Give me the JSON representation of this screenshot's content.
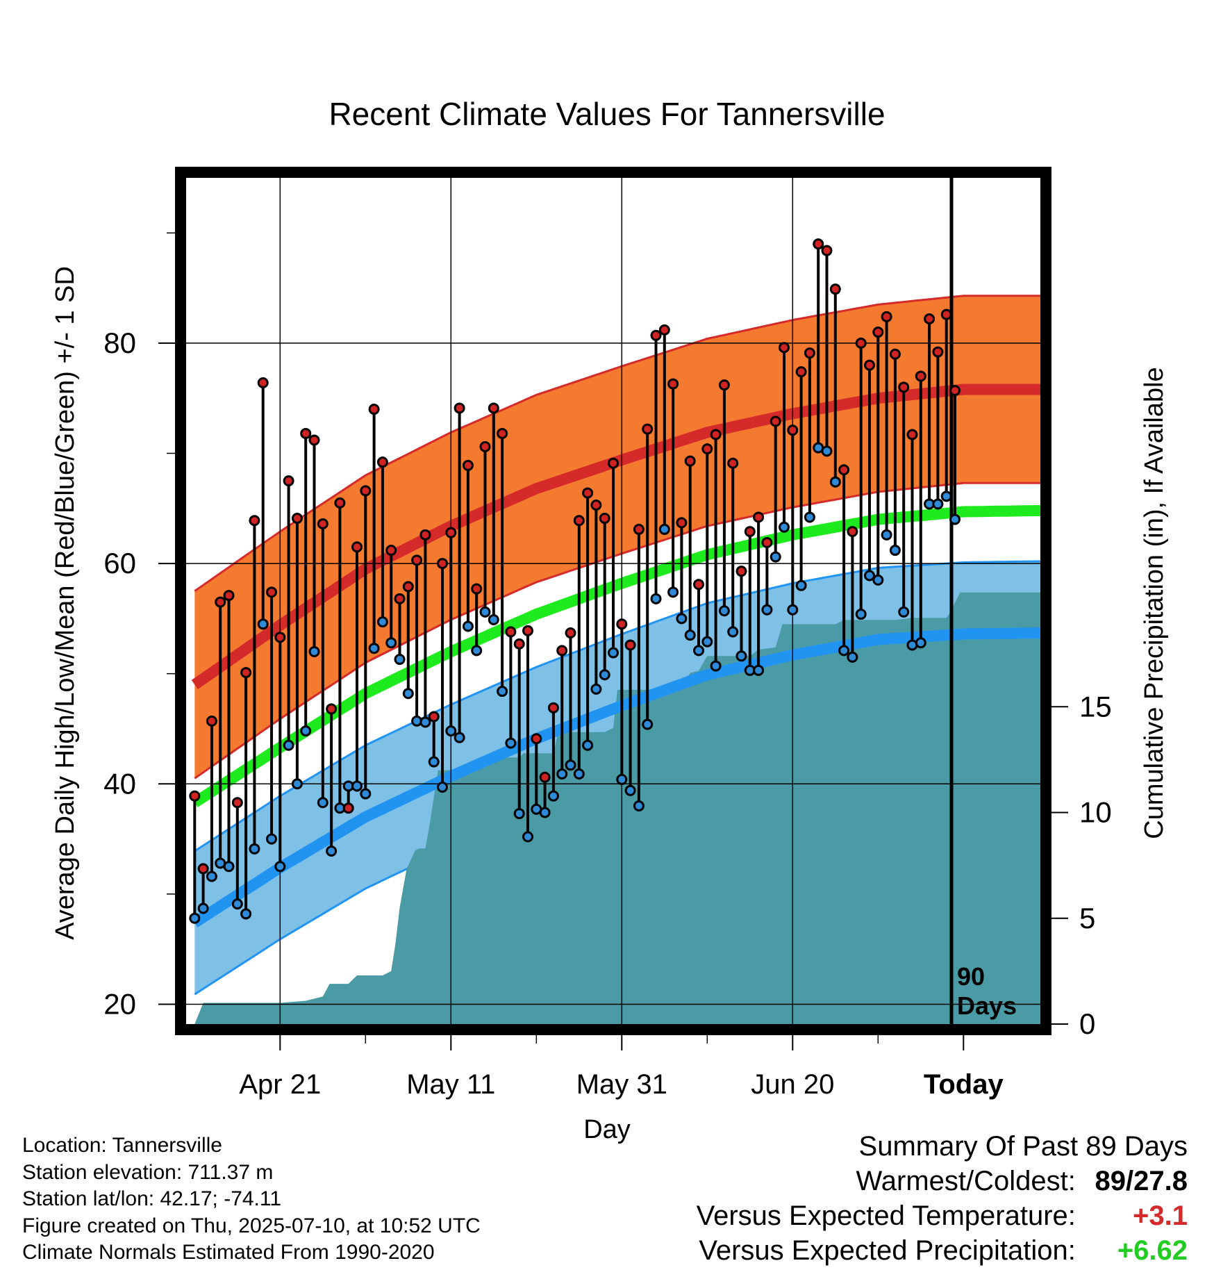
{
  "chart_data": {
    "type": "line",
    "title": "Recent Climate Values For Tannersville",
    "xlabel": "Day",
    "ylabel": "Average Daily High/Low/Mean (Red/Blue/Green) +/- 1 SD",
    "y2label": "Cumulative Precipitation (in), If Available",
    "x_tick_labels": [
      "Apr 21",
      "May 11",
      "May 31",
      "Jun 20",
      "Today"
    ],
    "x_tick_days": [
      10,
      30,
      50,
      70,
      90
    ],
    "xlim": [
      -1,
      99
    ],
    "ylim": [
      18.2,
      95
    ],
    "y_ticks": [
      20,
      40,
      60,
      80
    ],
    "y2lim": [
      0,
      40
    ],
    "y2_ticks": [
      0,
      5,
      10,
      15
    ],
    "today_label": "90\nDays",
    "normals": {
      "day": [
        0,
        10,
        20,
        30,
        40,
        50,
        60,
        70,
        80,
        90,
        99
      ],
      "high_mean": [
        49.0,
        54.4,
        59.5,
        63.4,
        66.8,
        69.4,
        71.9,
        73.6,
        75.0,
        75.8,
        75.8
      ],
      "high_sd": 8.5,
      "low_mean": [
        27.4,
        32.4,
        37.0,
        40.7,
        44.1,
        47.1,
        49.9,
        51.7,
        53.1,
        53.6,
        53.7
      ],
      "low_sd": 6.5,
      "mean": [
        38.3,
        43.3,
        48.2,
        52.0,
        55.4,
        58.2,
        60.8,
        62.6,
        64.0,
        64.7,
        64.8
      ]
    },
    "observed_highs": [
      38.9,
      32.3,
      45.7,
      56.5,
      57.1,
      38.3,
      50.1,
      63.9,
      76.4,
      57.4,
      53.3,
      67.5,
      64.1,
      71.8,
      71.2,
      63.6,
      46.8,
      65.5,
      37.8,
      61.5,
      66.6,
      74.0,
      69.2,
      61.2,
      56.8,
      57.9,
      60.3,
      62.6,
      46.1,
      60.0,
      62.8,
      74.1,
      68.9,
      57.7,
      70.6,
      74.1,
      71.8,
      53.8,
      52.7,
      53.9,
      44.1,
      40.6,
      46.9,
      52.1,
      53.7,
      63.9,
      66.4,
      65.3,
      64.1,
      69.1,
      54.5,
      52.6,
      63.1,
      72.2,
      80.7,
      81.2,
      76.3,
      63.7,
      69.3,
      58.1,
      70.4,
      71.7,
      76.2,
      69.1,
      59.3,
      62.9,
      64.2,
      61.9,
      72.9,
      79.6,
      72.1,
      77.4,
      79.1,
      89.0,
      88.4,
      84.9,
      68.5,
      62.9,
      80.0,
      78.0,
      81.0,
      82.4,
      79.0,
      76.0,
      71.7,
      77.0,
      82.2,
      79.2,
      82.6,
      75.7
    ],
    "observed_lows": [
      27.8,
      28.7,
      31.6,
      32.8,
      32.5,
      29.1,
      28.2,
      34.1,
      54.5,
      35.0,
      32.5,
      43.5,
      40.0,
      44.8,
      52.0,
      38.3,
      33.9,
      37.8,
      39.8,
      39.8,
      39.1,
      52.3,
      54.7,
      52.8,
      51.3,
      48.2,
      45.7,
      45.6,
      42.0,
      39.7,
      44.8,
      44.2,
      54.3,
      52.1,
      55.6,
      54.9,
      48.4,
      43.7,
      37.3,
      35.2,
      37.7,
      37.4,
      38.9,
      40.9,
      41.7,
      40.9,
      43.5,
      48.6,
      49.9,
      51.9,
      40.4,
      39.4,
      38.0,
      45.4,
      56.8,
      63.1,
      57.4,
      55.0,
      53.5,
      52.1,
      52.9,
      50.7,
      55.7,
      53.8,
      51.6,
      50.3,
      50.3,
      55.8,
      60.6,
      63.3,
      55.8,
      58.0,
      64.2,
      70.5,
      70.2,
      67.4,
      52.1,
      51.5,
      55.4,
      58.9,
      58.5,
      62.6,
      61.2,
      55.6,
      52.6,
      52.8,
      65.4,
      65.4,
      66.1,
      64.0
    ],
    "cumulative_precip": [
      [
        0,
        0
      ],
      [
        0.7,
        0.7
      ],
      [
        1,
        1.0
      ],
      [
        10,
        1.0
      ],
      [
        13,
        1.1
      ],
      [
        15,
        1.3
      ],
      [
        15.8,
        1.9
      ],
      [
        18,
        1.9
      ],
      [
        19,
        2.3
      ],
      [
        22,
        2.3
      ],
      [
        23,
        2.5
      ],
      [
        23.5,
        3.8
      ],
      [
        24,
        5.5
      ],
      [
        24.8,
        7.3
      ],
      [
        25.8,
        8.2
      ],
      [
        26.3,
        8.3
      ],
      [
        27,
        8.3
      ],
      [
        27.5,
        9.4
      ],
      [
        28.5,
        12.0
      ],
      [
        33,
        12.0
      ],
      [
        33.5,
        12.3
      ],
      [
        35,
        12.3
      ],
      [
        35.5,
        12.6
      ],
      [
        38,
        12.6
      ],
      [
        38.5,
        12.8
      ],
      [
        42,
        12.8
      ],
      [
        42.5,
        13.7
      ],
      [
        43,
        13.8
      ],
      [
        48,
        13.8
      ],
      [
        49,
        14.0
      ],
      [
        49.5,
        15.8
      ],
      [
        56,
        15.8
      ],
      [
        57,
        15.9
      ],
      [
        58,
        16.6
      ],
      [
        59,
        16.7
      ],
      [
        60,
        17.4
      ],
      [
        65,
        17.4
      ],
      [
        66,
        17.7
      ],
      [
        68,
        17.8
      ],
      [
        68.8,
        18.9
      ],
      [
        75,
        18.9
      ],
      [
        76,
        19.1
      ],
      [
        82,
        19.1
      ],
      [
        84,
        19.2
      ],
      [
        88,
        19.2
      ],
      [
        88.5,
        19.5
      ],
      [
        89.6,
        20.4
      ],
      [
        99,
        20.4
      ]
    ]
  },
  "footer": {
    "location": "Location: Tannersville",
    "elevation": "Station elevation: 711.37 m",
    "latlon": "Station lat/lon: 42.17; -74.11",
    "created": "Figure created on Thu, 2025-07-10, at 10:52 UTC",
    "normals": "Climate Normals Estimated From 1990-2020"
  },
  "summary": {
    "title": "Summary Of Past 89 Days",
    "warm_cold_label": "Warmest/Coldest:",
    "warm_cold_value": "89/27.8",
    "temp_label": "Versus Expected Temperature:",
    "temp_value": "+3.1",
    "precip_label": "Versus Expected Precipitation:",
    "precip_value": "+6.62"
  },
  "colors": {
    "high_band": "#f47a30",
    "high_line": "#d52a2a",
    "low_band": "#7ec0e6",
    "low_line": "#2194f2",
    "mean_line": "#1eeb1e",
    "precip": "#4a9ba5",
    "high_dot": "#d02424",
    "low_dot": "#2f8bd8",
    "positive_temp": "#d42a2a",
    "positive_precip": "#22cc22"
  }
}
